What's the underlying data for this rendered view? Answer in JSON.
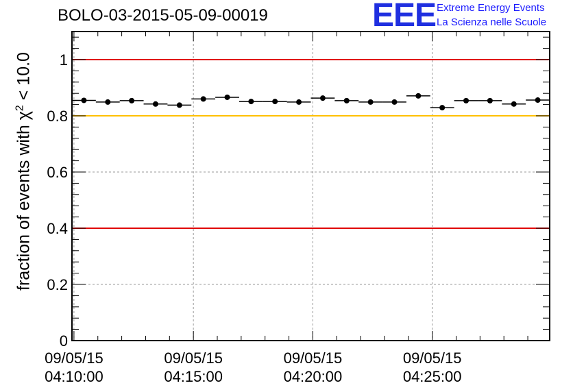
{
  "header": {
    "title": "BOLO-03-2015-05-09-00019",
    "logo_mark": "EEE",
    "logo_line1": "Extreme Energy Events",
    "logo_line2": "La Scienza nelle Scuole"
  },
  "colors": {
    "reference_red": "#e00000",
    "reference_yellow": "#ffc000",
    "points": "#000000",
    "logo_blue": "#1f2fe0"
  },
  "chart_data": {
    "type": "scatter",
    "title": "BOLO-03-2015-05-09-00019",
    "ylabel": {
      "prefix": "fraction of events with ",
      "chi": "χ",
      "sup": "2",
      "suffix": " < 10.0"
    },
    "xlabel": "",
    "x_axis": "time",
    "x_start": "09/05/15 04:09:55",
    "x_end": "09/05/15 04:29:55",
    "xlim": [
      "04:09:55",
      "04:29:55"
    ],
    "ylim": [
      0,
      1.1
    ],
    "x_ticks": [
      {
        "time": "04:10:00",
        "label": [
          "09/05/15",
          "04:10:00"
        ]
      },
      {
        "time": "04:15:00",
        "label": [
          "09/05/15",
          "04:15:00"
        ]
      },
      {
        "time": "04:20:00",
        "label": [
          "09/05/15",
          "04:20:00"
        ]
      },
      {
        "time": "04:25:00",
        "label": [
          "09/05/15",
          "04:25:00"
        ]
      }
    ],
    "y_ticks": [
      "0",
      "0.2",
      "0.4",
      "0.6",
      "0.8",
      "1"
    ],
    "y_tick_values": [
      0,
      0.2,
      0.4,
      0.6,
      0.8,
      1
    ],
    "grid": true,
    "reference_lines": [
      {
        "y": 1.0,
        "color": "#e00000"
      },
      {
        "y": 0.8,
        "color": "#ffc000"
      },
      {
        "y": 0.4,
        "color": "#e00000"
      }
    ],
    "series": [
      {
        "x_start": [
          "04:09:55",
          "04:10:55",
          "04:11:55",
          "04:12:55",
          "04:13:55",
          "04:14:55",
          "04:15:55",
          "04:16:55",
          "04:17:55",
          "04:18:55",
          "04:19:55",
          "04:20:55",
          "04:21:55",
          "04:22:55",
          "04:23:55",
          "04:24:55",
          "04:25:55",
          "04:26:55",
          "04:27:55",
          "04:28:55"
        ],
        "x_end": [
          "04:10:55",
          "04:11:55",
          "04:12:55",
          "04:13:55",
          "04:14:55",
          "04:15:55",
          "04:16:55",
          "04:17:55",
          "04:18:55",
          "04:19:55",
          "04:20:55",
          "04:21:55",
          "04:22:55",
          "04:23:55",
          "04:24:55",
          "04:25:55",
          "04:26:55",
          "04:27:55",
          "04:28:55",
          "04:29:55"
        ],
        "values": [
          0.855,
          0.849,
          0.854,
          0.842,
          0.838,
          0.86,
          0.866,
          0.851,
          0.851,
          0.849,
          0.863,
          0.854,
          0.849,
          0.849,
          0.871,
          0.829,
          0.854,
          0.854,
          0.842,
          0.856
        ]
      }
    ]
  }
}
